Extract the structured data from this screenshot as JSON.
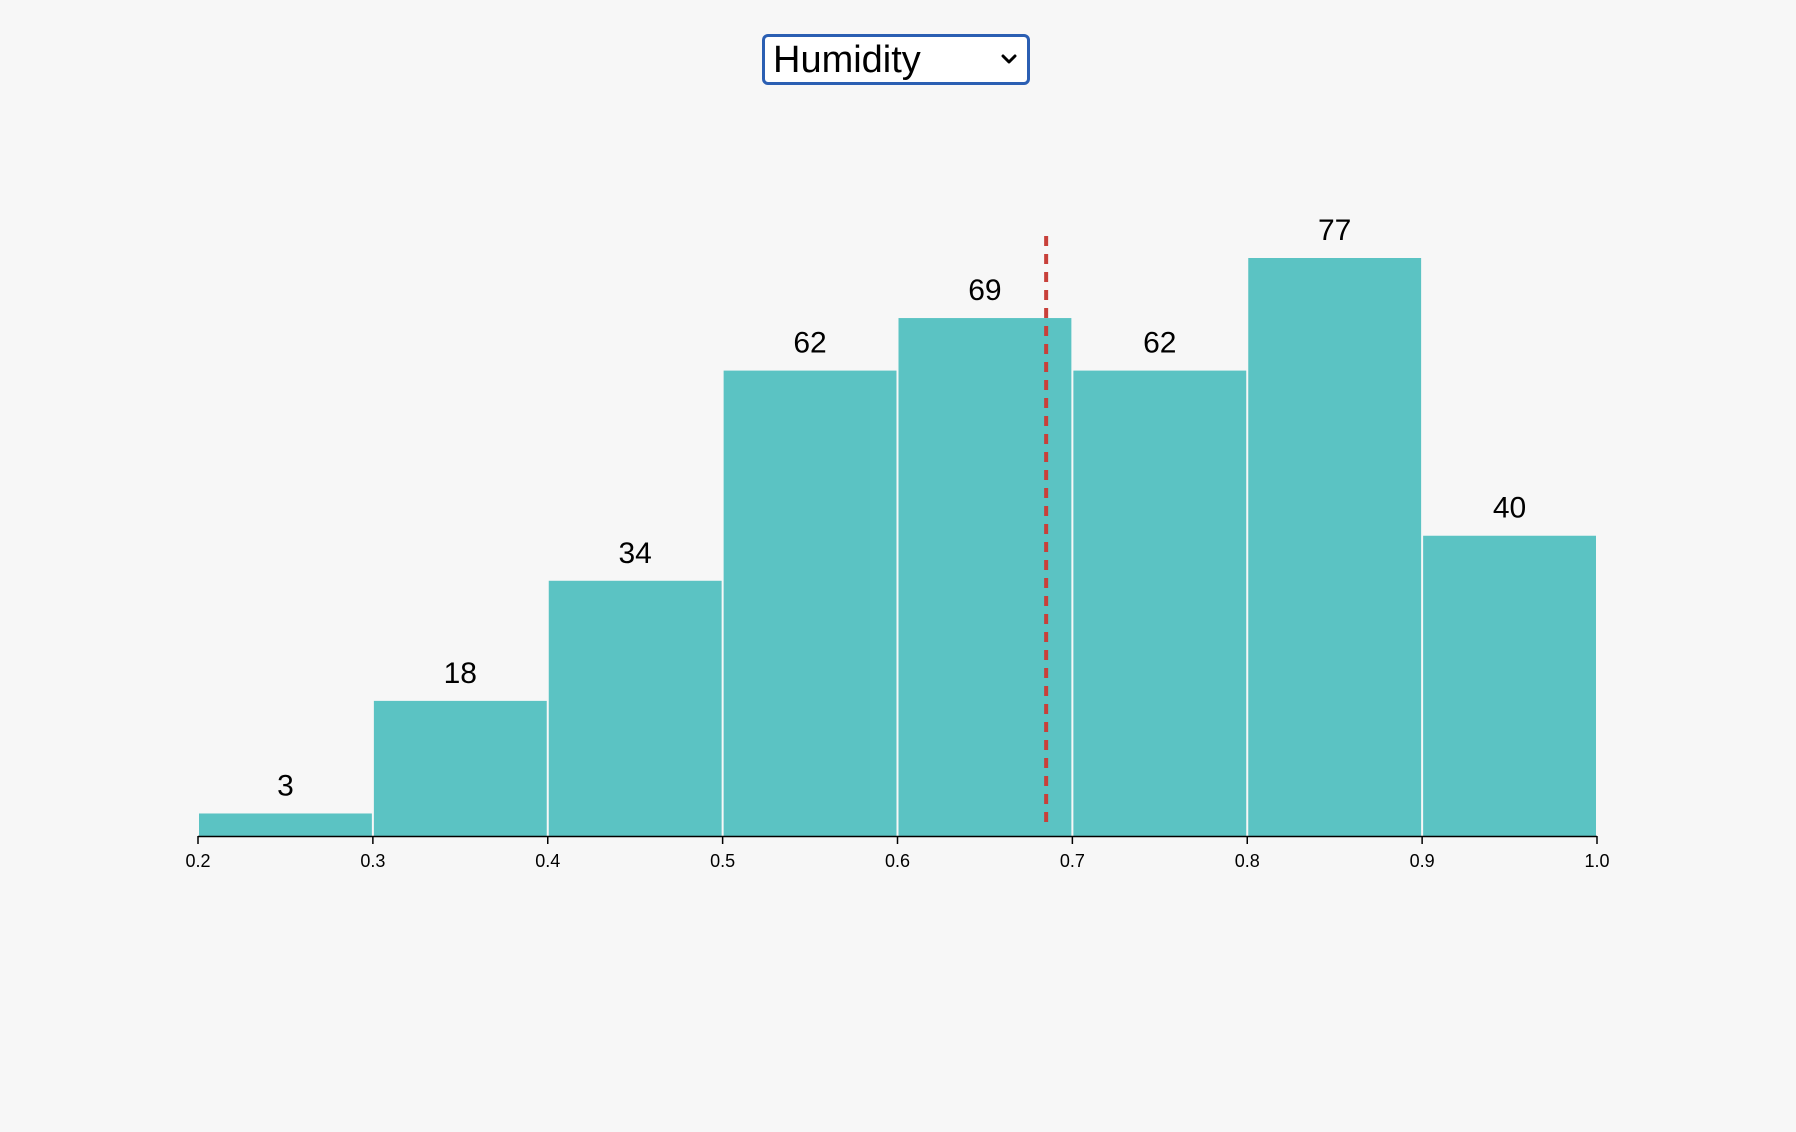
{
  "controls": {
    "metric_select": {
      "selected": "Humidity",
      "icon": "chevron-down-icon"
    }
  },
  "chart_data": {
    "type": "bar",
    "variant": "histogram",
    "title": "",
    "xlabel": "",
    "ylabel": "",
    "bins": [
      {
        "x0": 0.2,
        "x1": 0.3,
        "count": 3
      },
      {
        "x0": 0.3,
        "x1": 0.4,
        "count": 18
      },
      {
        "x0": 0.4,
        "x1": 0.5,
        "count": 34
      },
      {
        "x0": 0.5,
        "x1": 0.6,
        "count": 62
      },
      {
        "x0": 0.6,
        "x1": 0.7,
        "count": 69
      },
      {
        "x0": 0.7,
        "x1": 0.8,
        "count": 62
      },
      {
        "x0": 0.8,
        "x1": 0.9,
        "count": 77
      },
      {
        "x0": 0.9,
        "x1": 1.0,
        "count": 40
      }
    ],
    "values": [
      3,
      18,
      34,
      62,
      69,
      62,
      77,
      40
    ],
    "xlim": [
      0.2,
      1.0
    ],
    "ylim": [
      0,
      77
    ],
    "xticks": [
      "0.2",
      "0.3",
      "0.4",
      "0.5",
      "0.6",
      "0.7",
      "0.8",
      "0.9",
      "1.0"
    ],
    "reference_line": {
      "x": 0.685,
      "style": "dashed",
      "color": "#c8403a"
    },
    "bar_color": "#5bc3c3",
    "grid": false,
    "legend": "none"
  }
}
